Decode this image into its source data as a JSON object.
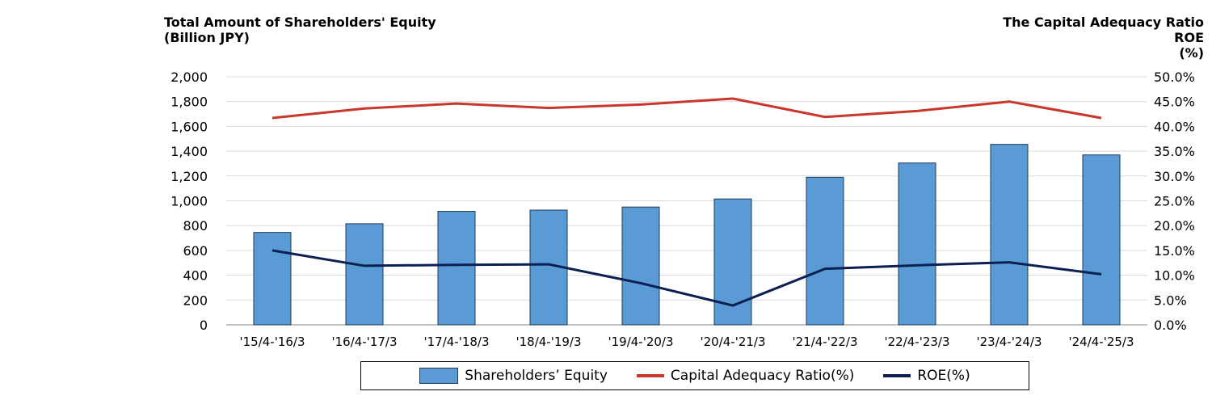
{
  "chart_data": {
    "type": "bar",
    "title_left_line1": "Total Amount of Shareholders' Equity",
    "title_left_line2": "(Billion JPY)",
    "title_right_line1": "The Capital Adequacy Ratio",
    "title_right_line2": "ROE",
    "title_right_line3": "(%)",
    "categories": [
      "'15/4-'16/3",
      "'16/4-'17/3",
      "'17/4-'18/3",
      "'18/4-'19/3",
      "'19/4-'20/3",
      "'20/4-'21/3",
      "'21/4-'22/3",
      "'22/4-'23/3",
      "'23/4-'24/3",
      "'24/4-'25/3"
    ],
    "left_axis": {
      "min": 0,
      "max": 2000,
      "step": 200,
      "tick_labels": [
        "0",
        "200",
        "400",
        "600",
        "800",
        "1,000",
        "1,200",
        "1,400",
        "1,600",
        "1,800",
        "2,000"
      ]
    },
    "right_axis": {
      "min": 0,
      "max": 50,
      "step": 5,
      "tick_labels": [
        "0.0%",
        "5.0%",
        "10.0%",
        "15.0%",
        "20.0%",
        "25.0%",
        "30.0%",
        "35.0%",
        "40.0%",
        "45.0%",
        "50.0%"
      ]
    },
    "grid": true,
    "legend_position": "bottom",
    "series": [
      {
        "name": "Shareholders’ Equity",
        "kind": "bar",
        "axis": "left",
        "color": "#5b9bd5",
        "values": [
          745,
          815,
          915,
          925,
          950,
          1015,
          1190,
          1305,
          1455,
          1370
        ]
      },
      {
        "name": "Capital Adequacy Ratio(%)",
        "kind": "line",
        "axis": "right",
        "color": "#c9372c",
        "values": [
          41.7,
          43.6,
          44.6,
          43.7,
          44.4,
          45.6,
          41.9,
          43.1,
          45.0,
          41.7
        ]
      },
      {
        "name": "ROE(%)",
        "kind": "line",
        "axis": "right",
        "color": "#0b1f52",
        "values": [
          15.0,
          11.9,
          12.1,
          12.2,
          8.4,
          3.9,
          11.3,
          12.0,
          12.6,
          10.2
        ]
      }
    ]
  }
}
